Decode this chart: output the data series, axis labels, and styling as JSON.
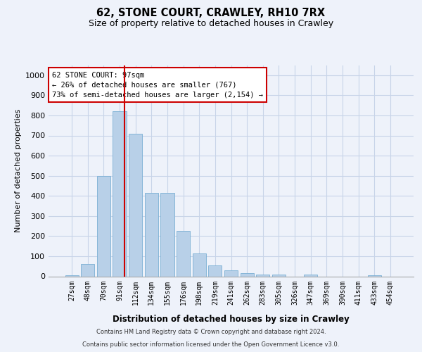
{
  "title_line1": "62, STONE COURT, CRAWLEY, RH10 7RX",
  "title_line2": "Size of property relative to detached houses in Crawley",
  "xlabel": "Distribution of detached houses by size in Crawley",
  "ylabel": "Number of detached properties",
  "categories": [
    "27sqm",
    "48sqm",
    "70sqm",
    "91sqm",
    "112sqm",
    "134sqm",
    "155sqm",
    "176sqm",
    "198sqm",
    "219sqm",
    "241sqm",
    "262sqm",
    "283sqm",
    "305sqm",
    "326sqm",
    "347sqm",
    "369sqm",
    "390sqm",
    "411sqm",
    "433sqm",
    "454sqm"
  ],
  "values": [
    5,
    60,
    500,
    820,
    710,
    415,
    415,
    225,
    115,
    55,
    30,
    15,
    10,
    10,
    0,
    10,
    0,
    0,
    0,
    5,
    0
  ],
  "bar_color": "#b8d0e8",
  "bar_edge_color": "#7aafd4",
  "ylim": [
    0,
    1050
  ],
  "yticks": [
    0,
    100,
    200,
    300,
    400,
    500,
    600,
    700,
    800,
    900,
    1000
  ],
  "property_label": "62 STONE COURT: 97sqm",
  "annotation_line1": "← 26% of detached houses are smaller (767)",
  "annotation_line2": "73% of semi-detached houses are larger (2,154) →",
  "red_line_color": "#cc0000",
  "annotation_box_facecolor": "#ffffff",
  "annotation_box_edgecolor": "#cc0000",
  "grid_color": "#c8d4e8",
  "footer_line1": "Contains HM Land Registry data © Crown copyright and database right 2024.",
  "footer_line2": "Contains public sector information licensed under the Open Government Licence v3.0.",
  "background_color": "#eef2fa",
  "plot_background": "#eef2fa"
}
